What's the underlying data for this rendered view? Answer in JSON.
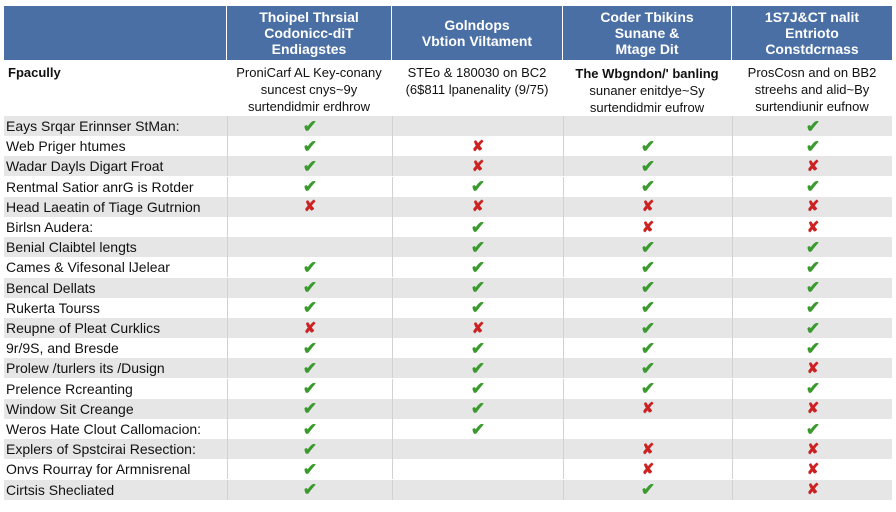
{
  "headers": {
    "col0": "",
    "col1": "Thoipel Thrsial\nCodonicc-diT\nEndiagstes",
    "col2": "Golndops\nVbtion Viltament",
    "col3": "Coder Tbikins\nSunane &\nMtage Dit",
    "col4": "1S7J&CT nalit\nEntrioto\nConstdcrnass"
  },
  "subheaders": {
    "col0": "Fpacully",
    "col1": "ProniCarf AL Key-conany\nsuncest cnys~9y\nsurtendidmir erdhrow",
    "col2": "STEo & 180030 on BC2\n(6$811 lpanenality (9/75)",
    "col3_bold": "The Wbgndon/' banling",
    "col3": "sunaner enitdye~Sy\nsurtendidmir eufrow",
    "col4": "ProsCosn and on BB2\nstreehs and alid~By\nsurtendiunir eufnow"
  },
  "rows": [
    {
      "label": "Eays Srqar Erinnser StMan:",
      "marks": [
        "yes",
        "",
        "",
        "yes"
      ]
    },
    {
      "label": "Web Priger htumes",
      "marks": [
        "yes",
        "no",
        "yes",
        "yes"
      ]
    },
    {
      "label": "Wadar Dayls Digart Froat",
      "marks": [
        "yes",
        "no",
        "yes",
        "no"
      ]
    },
    {
      "label": "Rentmal Satior anrG is Rotder",
      "marks": [
        "yes",
        "yes",
        "yes",
        "yes"
      ]
    },
    {
      "label": "Head Laeatin of Tiage Gutrnion",
      "marks": [
        "no",
        "no",
        "no",
        "no"
      ]
    },
    {
      "label": "Birlsn Audera:",
      "marks": [
        "",
        "yes",
        "no",
        "no"
      ]
    },
    {
      "label": "Benial Claibtel lengts",
      "marks": [
        "",
        "yes",
        "yes",
        "yes"
      ]
    },
    {
      "label": "Cames & Vifesonal lJelear",
      "marks": [
        "yes",
        "yes",
        "yes",
        "yes"
      ]
    },
    {
      "label": "Bencal Dellats",
      "marks": [
        "yes",
        "yes",
        "yes",
        "yes"
      ]
    },
    {
      "label": "Rukerta Tourss",
      "marks": [
        "yes",
        "yes",
        "yes",
        "yes"
      ]
    },
    {
      "label": "Reupne of Pleat Curklics",
      "marks": [
        "no",
        "no",
        "yes",
        "yes"
      ]
    },
    {
      "label": "9r/9S, and Bresde",
      "marks": [
        "yes",
        "yes",
        "yes",
        "yes"
      ]
    },
    {
      "label": "Prolew /turlers its /Dusign",
      "marks": [
        "yes",
        "yes",
        "yes",
        "no"
      ]
    },
    {
      "label": "Prelence Rcreanting",
      "marks": [
        "yes",
        "yes",
        "yes",
        "yes"
      ]
    },
    {
      "label": "Window Sit Creange",
      "marks": [
        "yes",
        "yes",
        "no",
        "no"
      ]
    },
    {
      "label": "Weros Hate Clout Callomacion:",
      "marks": [
        "yes",
        "yes",
        "",
        "yes"
      ]
    },
    {
      "label": "Explers of Spstcirai Resection:",
      "marks": [
        "yes",
        "",
        "no",
        "no"
      ]
    },
    {
      "label": "Onvs Rourray for Armnisrenal",
      "marks": [
        "yes",
        "",
        "no",
        "no"
      ]
    },
    {
      "label": "Cirtsis Shecliated",
      "marks": [
        "yes",
        "",
        "yes",
        "no"
      ]
    }
  ],
  "symbols": {
    "yes": "✔",
    "no": "✘"
  },
  "colors": {
    "header_bg": "#4a6fa5",
    "check": "#3a9a2e",
    "cross": "#cc2222",
    "alt_row": "#e6e6e6"
  }
}
